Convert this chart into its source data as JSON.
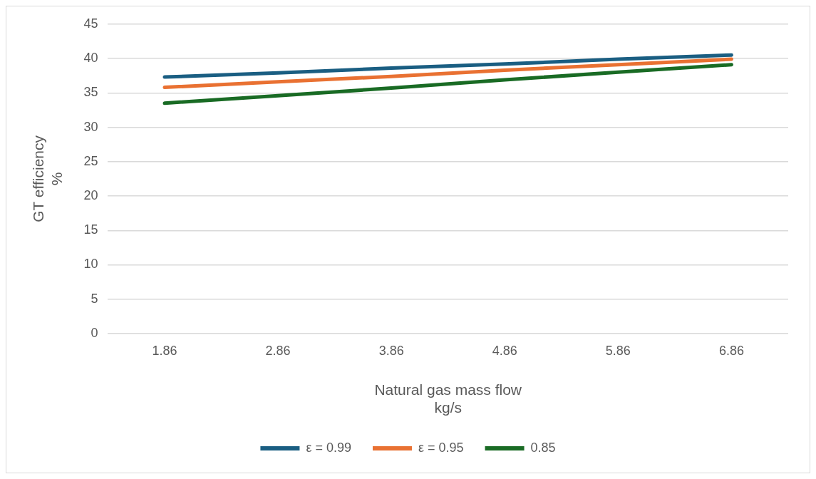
{
  "chart_data": {
    "type": "line",
    "xlabel": "Natural gas mass flow\nkg/s",
    "ylabel": "GT efficiency\n%",
    "categories": [
      "1.86",
      "2.86",
      "3.86",
      "4.86",
      "5.86",
      "6.86"
    ],
    "series": [
      {
        "name": "ε = 0.99",
        "color": "#1a5e82",
        "values": [
          37.3,
          37.9,
          38.6,
          39.2,
          39.9,
          40.5
        ]
      },
      {
        "name": "ε = 0.95",
        "color": "#e97132",
        "values": [
          35.8,
          36.6,
          37.4,
          38.3,
          39.1,
          39.9
        ]
      },
      {
        "name": "0.85",
        "color": "#196b24",
        "values": [
          33.5,
          34.6,
          35.7,
          36.9,
          38.0,
          39.1
        ]
      }
    ],
    "ylim": [
      0,
      45
    ],
    "yticks": [
      0,
      5,
      10,
      15,
      20,
      25,
      30,
      35,
      40,
      45
    ],
    "grid": "y",
    "legend": "bottom",
    "marker": "none",
    "line_style": "solid"
  }
}
